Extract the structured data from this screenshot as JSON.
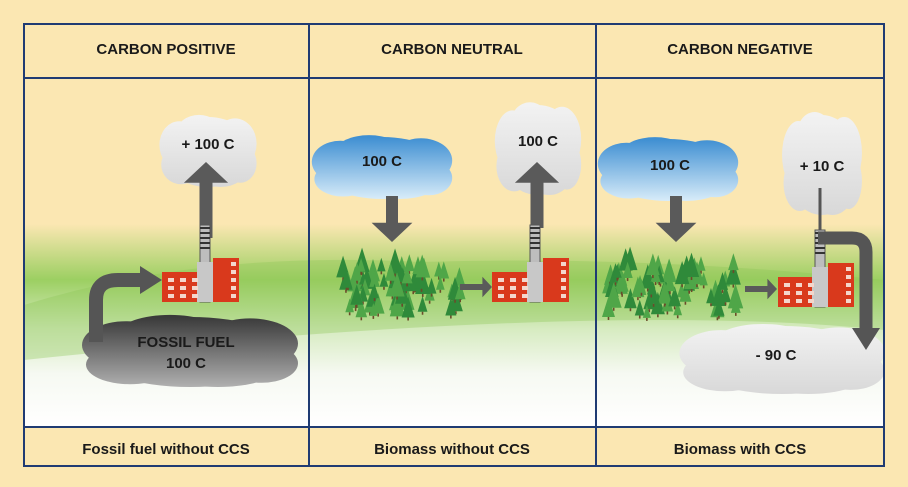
{
  "panels": [
    {
      "header": "CARBON POSITIVE",
      "labels": [
        "+ 100 C",
        "FOSSIL FUEL",
        "100 C"
      ],
      "footer": "Fossil fuel without CCS"
    },
    {
      "header": "CARBON NEUTRAL",
      "labels": [
        "100 C",
        "100 C"
      ],
      "footer": "Biomass without CCS"
    },
    {
      "header": "CARBON NEGATIVE",
      "labels": [
        "100 C",
        "+ 10 C",
        "- 90 C"
      ],
      "footer": "Biomass with CCS"
    }
  ]
}
